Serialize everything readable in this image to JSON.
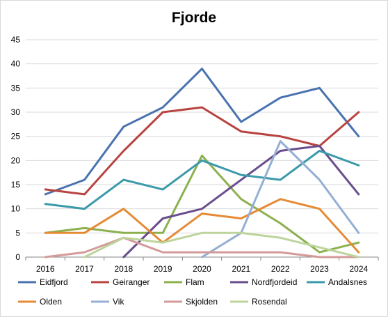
{
  "chart_data": {
    "type": "line",
    "title": "Fjorde",
    "xlabel": "",
    "ylabel": "",
    "categories": [
      "2016",
      "2017",
      "2018",
      "2019",
      "2020",
      "2021",
      "2022",
      "2023",
      "2024"
    ],
    "ylim": [
      0,
      45
    ],
    "yticks": [
      "0",
      "5",
      "10",
      "15",
      "20",
      "25",
      "30",
      "35",
      "40",
      "45"
    ],
    "grid": "horizontal",
    "legend_position": "bottom",
    "series": [
      {
        "name": "Eidfjord",
        "color": "#4a72b0",
        "values": [
          13,
          16,
          27,
          31,
          39,
          28,
          33,
          35,
          25
        ]
      },
      {
        "name": "Geiranger",
        "color": "#b84441",
        "values": [
          14,
          13,
          22,
          30,
          31,
          26,
          25,
          23,
          30
        ]
      },
      {
        "name": "Flam",
        "color": "#8db04f",
        "values": [
          5,
          6,
          5,
          5,
          21,
          12,
          7,
          1,
          3
        ]
      },
      {
        "name": "Nordfjordeid",
        "color": "#6a4e8c",
        "values": [
          null,
          null,
          0,
          8,
          10,
          16,
          22,
          23,
          13
        ]
      },
      {
        "name": "Andalsnes",
        "color": "#3a9aaa",
        "values": [
          11,
          10,
          16,
          14,
          20,
          17,
          16,
          22,
          19
        ]
      },
      {
        "name": "Olden",
        "color": "#e58a35",
        "values": [
          5,
          5,
          10,
          3,
          9,
          8,
          12,
          10,
          1
        ]
      },
      {
        "name": "Vik",
        "color": "#94aed4",
        "values": [
          null,
          null,
          null,
          null,
          0,
          5,
          24,
          16,
          5
        ]
      },
      {
        "name": "Skjolden",
        "color": "#d49a9a",
        "values": [
          0,
          1,
          4,
          1,
          1,
          1,
          1,
          0,
          0
        ]
      },
      {
        "name": "Rosendal",
        "color": "#bcd59a",
        "values": [
          null,
          0,
          4,
          3,
          5,
          5,
          4,
          2,
          0
        ]
      }
    ]
  }
}
